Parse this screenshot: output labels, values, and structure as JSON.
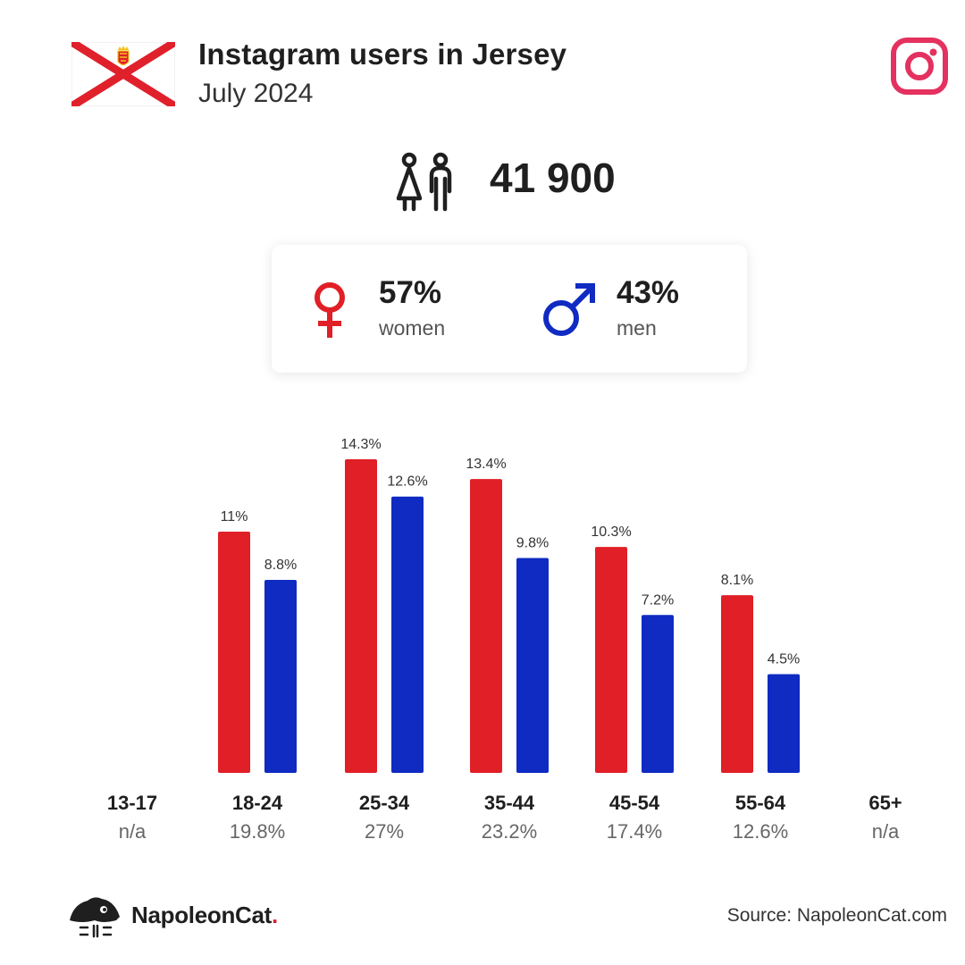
{
  "header": {
    "title": "Instagram users in Jersey",
    "subtitle": "July 2024"
  },
  "total": {
    "value": "41 900",
    "icon": "people-icon"
  },
  "gender": {
    "women": {
      "pct": "57%",
      "label": "women",
      "color": "#e01f26",
      "icon": "female-icon"
    },
    "men": {
      "pct": "43%",
      "label": "men",
      "color": "#0f2bc2",
      "icon": "male-icon"
    }
  },
  "footer": {
    "brand": "NapoleonCat",
    "brand_dot": ".",
    "source": "Source: NapoleonCat.com"
  },
  "colors": {
    "women": "#e01f26",
    "men": "#0f2bc2",
    "instagram": "#e4315f"
  },
  "chart_data": {
    "type": "bar",
    "categories": [
      "13-17",
      "18-24",
      "25-34",
      "35-44",
      "45-54",
      "55-64",
      "65+"
    ],
    "category_totals": [
      "n/a",
      "19.8%",
      "27%",
      "23.2%",
      "17.4%",
      "12.6%",
      "n/a"
    ],
    "series": [
      {
        "name": "women",
        "color": "#e01f26",
        "values": [
          null,
          11,
          14.3,
          13.4,
          10.3,
          8.1,
          null
        ],
        "labels": [
          "",
          "11%",
          "14.3%",
          "13.4%",
          "10.3%",
          "8.1%",
          ""
        ]
      },
      {
        "name": "men",
        "color": "#0f2bc2",
        "values": [
          null,
          8.8,
          12.6,
          9.8,
          7.2,
          4.5,
          null
        ],
        "labels": [
          "",
          "8.8%",
          "12.6%",
          "9.8%",
          "7.2%",
          "4.5%",
          ""
        ]
      }
    ],
    "ylim": [
      0,
      14.3
    ],
    "grid": false
  }
}
